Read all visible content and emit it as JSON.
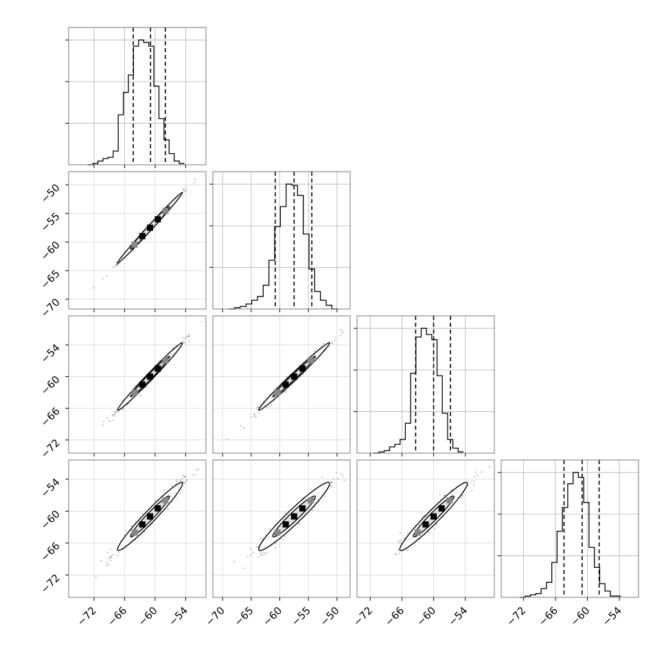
{
  "chart_data": {
    "type": "corner",
    "n_params": 4,
    "quantile_lines": "dashed",
    "grid": true,
    "parameters": [
      {
        "ticks": [
          -72,
          -66,
          -60,
          -54
        ],
        "range": [
          -77,
          -50
        ],
        "tick_labels": [
          "−72",
          "−66",
          "−60",
          "−54"
        ]
      },
      {
        "ticks": [
          -70,
          -65,
          -60,
          -55,
          -50
        ],
        "range": [
          -71.7,
          -47.7
        ],
        "tick_labels": [
          "−70",
          "−65",
          "−60",
          "−55",
          "−50"
        ]
      },
      {
        "ticks": [
          -72,
          -66,
          -60,
          -54
        ],
        "range": [
          -74.5,
          -48.5
        ],
        "tick_labels": [
          "−72",
          "−66",
          "−60",
          "−54"
        ]
      },
      {
        "ticks": [
          -72,
          -66,
          -60,
          -54
        ],
        "range": [
          -76.2,
          -50.4
        ],
        "tick_labels": [
          "−72",
          "−66",
          "−60",
          "−54"
        ]
      }
    ],
    "histograms": [
      {
        "param": 0,
        "bin_start": -73.25,
        "bin_width": 1.0,
        "counts": [
          0,
          1,
          3,
          5,
          6,
          11,
          40,
          58,
          72,
          95,
          100,
          98,
          95,
          63,
          37,
          20,
          9,
          3,
          1
        ],
        "quantiles": [
          -64.3,
          -60.9,
          -58.0
        ]
      },
      {
        "param": 1,
        "bin_start": -68.9,
        "bin_width": 1.0,
        "counts": [
          0,
          1,
          2,
          4,
          7,
          10,
          19,
          39,
          66,
          82,
          100,
          99,
          91,
          60,
          32,
          14,
          7,
          3,
          0
        ],
        "quantiles": [
          -60.8,
          -57.5,
          -54.4
        ]
      },
      {
        "param": 2,
        "bin_start": -71.35,
        "bin_width": 1.0,
        "counts": [
          0,
          1,
          2,
          5,
          7,
          11,
          24,
          64,
          93,
          100,
          95,
          91,
          62,
          32,
          11,
          4,
          1
        ],
        "quantiles": [
          -63.4,
          -60.0,
          -56.8
        ]
      },
      {
        "param": 3,
        "bin_start": -72.7,
        "bin_width": 1.0,
        "counts": [
          0,
          1,
          2,
          3,
          7,
          12,
          28,
          53,
          72,
          91,
          100,
          96,
          76,
          40,
          24,
          11,
          5,
          1,
          1
        ],
        "quantiles": [
          -64.4,
          -61.0,
          -57.8
        ]
      }
    ],
    "scatter_panels": [
      {
        "row": 1,
        "col": 0,
        "corr": 0.997
      },
      {
        "row": 2,
        "col": 0,
        "corr": 0.99
      },
      {
        "row": 2,
        "col": 1,
        "corr": 0.99
      },
      {
        "row": 3,
        "col": 0,
        "corr": 0.97
      },
      {
        "row": 3,
        "col": 1,
        "corr": 0.96
      },
      {
        "row": 3,
        "col": 2,
        "corr": 0.965
      }
    ],
    "posterior_center": [
      -61,
      -57.5,
      -60,
      -61
    ],
    "posterior_sd": [
      3.2,
      3.1,
      3.2,
      3.2
    ]
  }
}
